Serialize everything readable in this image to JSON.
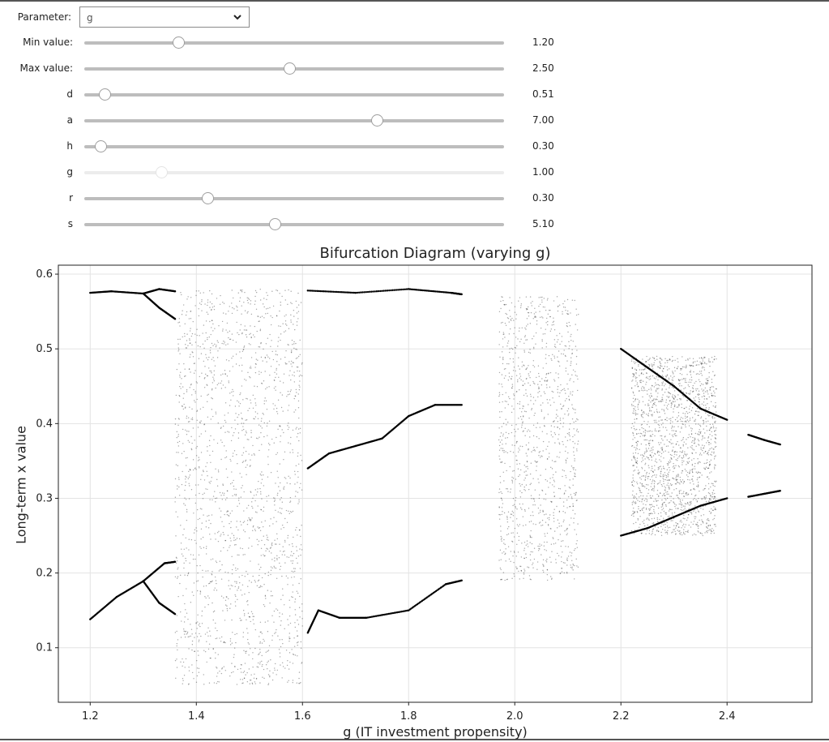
{
  "parameter_select": {
    "label": "Parameter:",
    "value": "g",
    "icon": "chevron-down-icon"
  },
  "sliders": [
    {
      "key": "min-value",
      "label": "Min value:",
      "value_text": "1.20",
      "fraction": 0.225,
      "disabled": false
    },
    {
      "key": "max-value",
      "label": "Max value:",
      "value_text": "2.50",
      "fraction": 0.49,
      "disabled": false
    },
    {
      "key": "d",
      "label": "d",
      "value_text": "0.51",
      "fraction": 0.05,
      "disabled": false
    },
    {
      "key": "a",
      "label": "a",
      "value_text": "7.00",
      "fraction": 0.697,
      "disabled": false
    },
    {
      "key": "h",
      "label": "h",
      "value_text": "0.30",
      "fraction": 0.04,
      "disabled": false
    },
    {
      "key": "g",
      "label": "g",
      "value_text": "1.00",
      "fraction": 0.185,
      "disabled": true
    },
    {
      "key": "r",
      "label": "r",
      "value_text": "0.30",
      "fraction": 0.295,
      "disabled": false
    },
    {
      "key": "s",
      "label": "s",
      "value_text": "5.10",
      "fraction": 0.455,
      "disabled": false
    }
  ],
  "chart_data": {
    "type": "scatter",
    "title": "Bifurcation Diagram (varying g)",
    "xlabel": "g (IT investment propensity)",
    "ylabel": "Long-term x value",
    "xlim": [
      1.14,
      2.56
    ],
    "ylim": [
      0.027,
      0.612
    ],
    "xticks": [
      1.2,
      1.4,
      1.6,
      1.8,
      2.0,
      2.2,
      2.4
    ],
    "yticks": [
      0.1,
      0.2,
      0.3,
      0.4,
      0.5,
      0.6
    ],
    "tick_labels_x": [
      "1.2",
      "1.4",
      "1.6",
      "1.8",
      "2.0",
      "2.2",
      "2.4"
    ],
    "tick_labels_y": [
      "0.1",
      "0.2",
      "0.3",
      "0.4",
      "0.5",
      "0.6"
    ],
    "grid": true,
    "marker_color": "#000000",
    "series": [
      {
        "style": "stable-branch",
        "points": [
          [
            1.2,
            0.138
          ],
          [
            1.25,
            0.168
          ],
          [
            1.3,
            0.189
          ]
        ]
      },
      {
        "style": "stable-branch",
        "points": [
          [
            1.2,
            0.575
          ],
          [
            1.24,
            0.577
          ],
          [
            1.3,
            0.574
          ]
        ]
      },
      {
        "style": "stable-branch",
        "points": [
          [
            1.3,
            0.189
          ],
          [
            1.34,
            0.213
          ],
          [
            1.36,
            0.215
          ]
        ]
      },
      {
        "style": "stable-branch",
        "points": [
          [
            1.3,
            0.189
          ],
          [
            1.33,
            0.16
          ],
          [
            1.36,
            0.145
          ]
        ]
      },
      {
        "style": "stable-branch",
        "points": [
          [
            1.3,
            0.574
          ],
          [
            1.33,
            0.58
          ],
          [
            1.36,
            0.577
          ]
        ]
      },
      {
        "style": "stable-branch",
        "points": [
          [
            1.3,
            0.574
          ],
          [
            1.33,
            0.555
          ],
          [
            1.36,
            0.54
          ]
        ]
      },
      {
        "style": "stable-branch",
        "points": [
          [
            1.61,
            0.34
          ],
          [
            1.65,
            0.36
          ],
          [
            1.7,
            0.37
          ],
          [
            1.75,
            0.38
          ],
          [
            1.8,
            0.41
          ],
          [
            1.85,
            0.425
          ],
          [
            1.9,
            0.425
          ]
        ]
      },
      {
        "style": "stable-branch",
        "points": [
          [
            1.61,
            0.12
          ],
          [
            1.63,
            0.15
          ],
          [
            1.67,
            0.14
          ],
          [
            1.72,
            0.14
          ],
          [
            1.8,
            0.15
          ],
          [
            1.87,
            0.185
          ],
          [
            1.9,
            0.19
          ]
        ]
      },
      {
        "style": "stable-branch",
        "points": [
          [
            1.61,
            0.578
          ],
          [
            1.7,
            0.575
          ],
          [
            1.8,
            0.58
          ],
          [
            1.88,
            0.575
          ],
          [
            1.9,
            0.573
          ]
        ]
      },
      {
        "style": "stable-branch",
        "points": [
          [
            2.2,
            0.5
          ],
          [
            2.25,
            0.475
          ],
          [
            2.3,
            0.45
          ],
          [
            2.35,
            0.42
          ],
          [
            2.4,
            0.405
          ]
        ]
      },
      {
        "style": "stable-branch",
        "points": [
          [
            2.2,
            0.25
          ],
          [
            2.25,
            0.26
          ],
          [
            2.3,
            0.275
          ],
          [
            2.35,
            0.29
          ],
          [
            2.4,
            0.3
          ]
        ]
      },
      {
        "style": "stable-branch",
        "points": [
          [
            2.44,
            0.385
          ],
          [
            2.47,
            0.378
          ],
          [
            2.5,
            0.372
          ]
        ]
      },
      {
        "style": "stable-branch",
        "points": [
          [
            2.44,
            0.302
          ],
          [
            2.47,
            0.306
          ],
          [
            2.5,
            0.31
          ]
        ]
      },
      {
        "style": "chaotic-band",
        "x_range": [
          1.36,
          1.6
        ],
        "y_range": [
          0.05,
          0.58
        ],
        "density": "dense"
      },
      {
        "style": "chaotic-band",
        "x_range": [
          1.97,
          2.12
        ],
        "y_range": [
          0.19,
          0.57
        ],
        "density": "medium"
      },
      {
        "style": "chaotic-band",
        "x_range": [
          2.22,
          2.38
        ],
        "y_range": [
          0.25,
          0.49
        ],
        "density": "dense"
      }
    ]
  }
}
